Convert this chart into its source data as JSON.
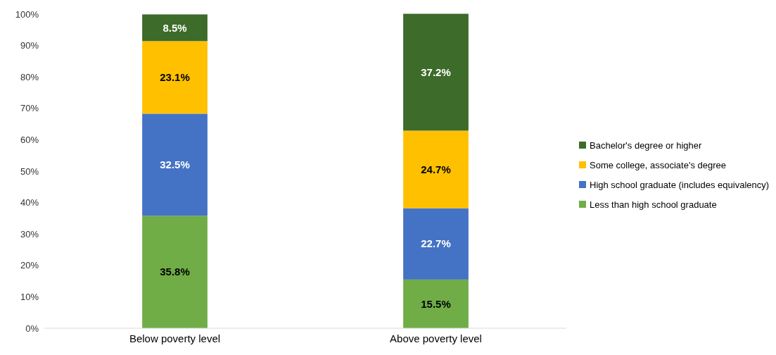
{
  "chart_data": {
    "type": "bar",
    "stacked": true,
    "categories": [
      "Below poverty level",
      "Above poverty level"
    ],
    "series": [
      {
        "name": "Less than high school graduate",
        "color": "#70ad47",
        "values": [
          35.8,
          15.5
        ]
      },
      {
        "name": "High school graduate (includes equivalency)",
        "color": "#4472c4",
        "values": [
          32.5,
          22.7
        ]
      },
      {
        "name": "Some college, associate's degree",
        "color": "#ffc000",
        "values": [
          23.1,
          24.7
        ]
      },
      {
        "name": "Bachelor's degree or higher",
        "color": "#3d6b2a",
        "values": [
          8.5,
          37.2
        ]
      }
    ],
    "ylim": [
      0,
      100
    ],
    "yticks": [
      {
        "value": 0,
        "label": "0%"
      },
      {
        "value": 10,
        "label": "10%"
      },
      {
        "value": 20,
        "label": "20%"
      },
      {
        "value": 30,
        "label": "30%"
      },
      {
        "value": 40,
        "label": "40%"
      },
      {
        "value": 50,
        "label": "50%"
      },
      {
        "value": 60,
        "label": "60%"
      },
      {
        "value": 70,
        "label": "70%"
      },
      {
        "value": 80,
        "label": "80%"
      },
      {
        "value": 90,
        "label": "90%"
      },
      {
        "value": 100,
        "label": "100%"
      }
    ],
    "value_labels": [
      [
        "35.8%",
        "15.5%"
      ],
      [
        "32.5%",
        "22.7%"
      ],
      [
        "23.1%",
        "24.7%"
      ],
      [
        "8.5%",
        "37.2%"
      ]
    ],
    "legend": "right",
    "grid": false
  }
}
